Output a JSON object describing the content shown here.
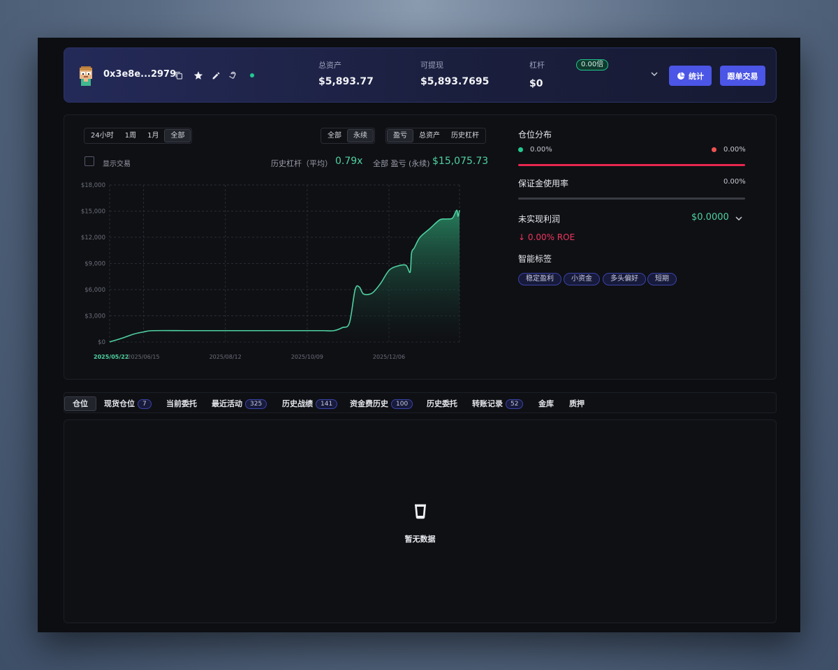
{
  "header": {
    "address": "0x3e8e...2979",
    "total_assets_label": "总资产",
    "total_assets_value": "$5,893.77",
    "withdrawable_label": "可提现",
    "withdrawable_value": "$5,893.7695",
    "leverage_label": "杠杆",
    "leverage_badge": "0.00倍",
    "leverage_value": "$0",
    "stats_button": "统计",
    "copy_trade_button": "跟单交易",
    "colors": {
      "accent": "#4b55e6",
      "online": "#22c98f"
    }
  },
  "chart_controls": {
    "time_ranges": [
      "24小时",
      "1周",
      "1月",
      "全部"
    ],
    "time_range_selected": "全部",
    "scope": [
      "全部",
      "永续"
    ],
    "scope_selected": "永续",
    "metric": [
      "盈亏",
      "总资产",
      "历史杠杆"
    ],
    "metric_selected": "盈亏",
    "show_trades_label": "显示交易",
    "avg_leverage_label": "历史杠杆（平均）",
    "avg_leverage_value": "0.79x",
    "pnl_label": "全部 盈亏 (永续)",
    "pnl_value": "$15,075.73"
  },
  "chart_data": {
    "type": "area",
    "y_ticks": [
      "$18,000",
      "$15,000",
      "$12,000",
      "$9,000",
      "$6,000",
      "$3,000",
      "$0"
    ],
    "ylim": [
      0,
      18000
    ],
    "x_ticks": [
      "2025/05/22",
      "2025/06/15",
      "2025/08/12",
      "2025/10/09",
      "2025/12/06"
    ],
    "x_dates": [
      "2025-05-22",
      "2025-06-01",
      "2025-06-08",
      "2025-06-15",
      "2025-06-22",
      "2025-07-15",
      "2025-08-12",
      "2025-09-10",
      "2025-10-09",
      "2025-10-20",
      "2025-10-28",
      "2025-11-03",
      "2025-11-08",
      "2025-11-12",
      "2025-11-15",
      "2025-11-18",
      "2025-11-24",
      "2025-11-30",
      "2025-12-06",
      "2025-12-12",
      "2025-12-18",
      "2025-12-21",
      "2025-12-22",
      "2025-12-24",
      "2025-12-28",
      "2026-01-04",
      "2026-01-11",
      "2026-01-16",
      "2026-01-20",
      "2026-01-23",
      "2026-01-24",
      "2026-01-25"
    ],
    "values": [
      0,
      500,
      900,
      1150,
      1300,
      1300,
      1300,
      1300,
      1300,
      1300,
      1300,
      1650,
      2200,
      6000,
      6300,
      5500,
      5600,
      6700,
      8200,
      8700,
      8800,
      8000,
      10200,
      10800,
      12000,
      13000,
      14000,
      14100,
      14200,
      15100,
      14400,
      15100
    ],
    "grid": true,
    "colors": {
      "line": "#4fd1a1",
      "fill": "#1c5c45"
    }
  },
  "side": {
    "position_dist_label": "仓位分布",
    "long_pct": "0.00%",
    "short_pct": "0.00%",
    "margin_usage_label": "保证金使用率",
    "margin_usage_pct": "0.00%",
    "unrealized_label": "未实现利润",
    "unrealized_value": "$0.0000",
    "roe": "↓ 0.00% ROE",
    "smart_tags_label": "智能标签",
    "tags": [
      "稳定盈利",
      "小资金",
      "多头偏好",
      "短期"
    ],
    "colors": {
      "long": "#22c98f",
      "short": "#f05252",
      "roe": "#f0365f"
    }
  },
  "tabs": [
    {
      "label": "仓位",
      "count": ""
    },
    {
      "label": "现货仓位",
      "count": "7"
    },
    {
      "label": "当前委托",
      "count": ""
    },
    {
      "label": "最近活动",
      "count": "325"
    },
    {
      "label": "历史战绩",
      "count": "141"
    },
    {
      "label": "资金费历史",
      "count": "100"
    },
    {
      "label": "历史委托",
      "count": ""
    },
    {
      "label": "转账记录",
      "count": "52"
    },
    {
      "label": "金库",
      "count": ""
    },
    {
      "label": "质押",
      "count": ""
    }
  ],
  "empty_state": {
    "text": "暂无数据"
  }
}
